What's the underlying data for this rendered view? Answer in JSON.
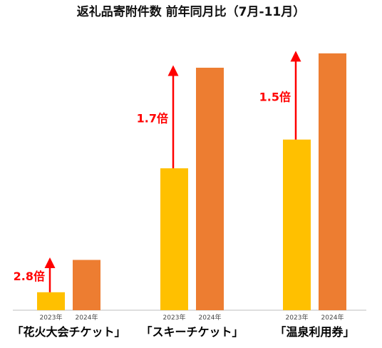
{
  "chart_data": {
    "type": "bar",
    "title": "返礼品寄附件数 前年同月比（7月-11月）",
    "categories": [
      "「花火大会チケット」",
      "「スキーチケット」",
      "「温泉利用券」"
    ],
    "series": [
      {
        "name": "2023年",
        "values": [
          1.0,
          7.9,
          9.5
        ]
      },
      {
        "name": "2024年",
        "values": [
          2.8,
          13.5,
          14.3
        ]
      }
    ],
    "multipliers": [
      "2.8倍",
      "1.7倍",
      "1.5倍"
    ],
    "ylim": [
      0,
      16
    ],
    "grid": false,
    "legend": "none",
    "colors": {
      "series_2023": "#FFC000",
      "series_2024": "#ED7D31",
      "arrow": "#FF0000",
      "axis": "#BFBFBF"
    }
  }
}
